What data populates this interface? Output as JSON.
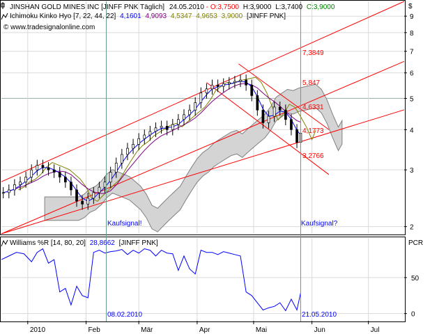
{
  "colors": {
    "background": "#ffffff",
    "frame": "#000000",
    "grid": "#d9d9d9",
    "channel": "#ff0000",
    "tenkan": "#0000ff",
    "kijun": "#800080",
    "chikou": "#808000",
    "cloud_fill": "#d4d4d4",
    "cloud_edge": "#808080",
    "signal_line": "#6a9a8a",
    "williams": "#0000ff",
    "header_up": "#000000",
    "header_red": "#ff0000",
    "header_green": "#008000",
    "annotation_blue": "#0000ff"
  },
  "header": {
    "row1_prefix": "JINSHAN GOLD MINES INC [JINFF PNK  Täglich]",
    "row1_date": "24.05.2010",
    "row1_sep": " - ",
    "row1_o": "O:3,7500",
    "row1_h": "H:3,9000",
    "row1_l": "L:3,7400",
    "row1_c": "C:3,9000",
    "row2_prefix": "Ichimoku Kinko Hyo [7, 22, 44, 22]",
    "row2_v1": "4,1601",
    "row2_v2": "4,9093",
    "row2_v3": "4,5347",
    "row2_v4": "4,9653",
    "row2_v5": "3,9000",
    "row2_suffix": "[JINFF PNK]",
    "row3": "© www.tradesignalonline.com",
    "currency": "$",
    "williams_title": "Williams %R [14, 80, 20]",
    "williams_value": "28,8662",
    "williams_suffix": "[JINFF PNK]",
    "pcr": "PCR"
  },
  "annotations": {
    "kaufsignal_1": "Kaufsignal!",
    "kaufsignal_2": "Kaufsignal?",
    "date_1": "08.02.2010",
    "date_2": "21.05.2010",
    "level_1": "7,3849",
    "level_2": "5,847",
    "level_3": "4,6331",
    "level_4": "4,1773",
    "level_5": "3,2766"
  },
  "chart_data": [
    {
      "type": "candlestick",
      "title": "JINSHAN GOLD MINES INC [JINFF PNK  Täglich]",
      "scale": "log",
      "ylim": [
        1.9,
        10
      ],
      "y_ticks": [
        2,
        3,
        4,
        5,
        6,
        7,
        8,
        9
      ],
      "x_labels": [
        "2010",
        "Feb",
        "Mär",
        "Apr",
        "Mai",
        "Jun",
        "Jul"
      ],
      "x_label_days": [
        0,
        31,
        59,
        90,
        120,
        151,
        181
      ],
      "xlim_days": [
        -14,
        200
      ],
      "ohlc_approx": [
        [
          -13,
          2.55
        ],
        [
          -10,
          2.6
        ],
        [
          -7,
          2.7
        ],
        [
          -4,
          2.75
        ],
        [
          -1,
          2.85
        ],
        [
          2,
          3.0
        ],
        [
          5,
          3.1
        ],
        [
          8,
          3.05
        ],
        [
          11,
          3.0
        ],
        [
          14,
          2.95
        ],
        [
          17,
          2.85
        ],
        [
          20,
          2.75
        ],
        [
          23,
          2.6
        ],
        [
          26,
          2.4
        ],
        [
          29,
          2.35
        ],
        [
          32,
          2.45
        ],
        [
          35,
          2.55
        ],
        [
          38,
          2.65
        ],
        [
          41,
          2.75
        ],
        [
          44,
          2.95
        ],
        [
          47,
          3.15
        ],
        [
          50,
          3.35
        ],
        [
          53,
          3.5
        ],
        [
          56,
          3.6
        ],
        [
          59,
          3.75
        ],
        [
          62,
          3.85
        ],
        [
          65,
          3.95
        ],
        [
          68,
          4.05
        ],
        [
          71,
          4.1
        ],
        [
          74,
          4.0
        ],
        [
          77,
          4.15
        ],
        [
          80,
          4.3
        ],
        [
          83,
          4.45
        ],
        [
          86,
          4.6
        ],
        [
          89,
          4.85
        ],
        [
          92,
          5.2
        ],
        [
          95,
          5.35
        ],
        [
          98,
          5.5
        ],
        [
          101,
          5.45
        ],
        [
          104,
          5.55
        ],
        [
          107,
          5.6
        ],
        [
          110,
          5.65
        ],
        [
          113,
          5.7
        ],
        [
          116,
          5.5
        ],
        [
          119,
          5.1
        ],
        [
          122,
          4.6
        ],
        [
          125,
          4.2
        ],
        [
          128,
          4.4
        ],
        [
          131,
          4.7
        ],
        [
          134,
          4.6
        ],
        [
          137,
          4.3
        ],
        [
          140,
          4.0
        ],
        [
          143,
          3.65
        ],
        [
          145,
          3.9
        ]
      ],
      "ichimoku": {
        "params": [
          7,
          22,
          44,
          22
        ],
        "tenkan_last": 4.1601,
        "kijun_last": 4.9093,
        "senkou_a_last": 4.5347,
        "senkou_b_last": 4.9653,
        "chikou_last": 3.9
      },
      "channel_levels": [
        7.3849,
        5.847,
        4.6331,
        4.1773,
        3.2766
      ],
      "last": {
        "date": "24.05.2010",
        "open": 3.75,
        "high": 3.9,
        "low": 3.74,
        "close": 3.9
      }
    },
    {
      "type": "line",
      "title": "Williams %R [14, 80, 20]",
      "ylim": [
        -10,
        105
      ],
      "y_ticks": [
        0,
        50
      ],
      "ylabel": "PCR",
      "x_days": [
        -14,
        -10,
        -6,
        -2,
        2,
        5,
        8,
        11,
        14,
        17,
        20,
        23,
        26,
        29,
        32,
        35,
        38,
        41,
        44,
        47,
        50,
        53,
        56,
        59,
        62,
        65,
        68,
        71,
        74,
        77,
        80,
        83,
        86,
        89,
        92,
        95,
        98,
        101,
        104,
        107,
        110,
        113,
        116,
        119,
        122,
        125,
        128,
        131,
        134,
        137,
        140,
        143,
        145
      ],
      "values": [
        75,
        80,
        85,
        83,
        72,
        85,
        90,
        70,
        75,
        30,
        35,
        12,
        38,
        25,
        22,
        85,
        88,
        84,
        86,
        87,
        89,
        82,
        88,
        84,
        90,
        88,
        80,
        88,
        84,
        83,
        60,
        80,
        62,
        55,
        88,
        85,
        85,
        82,
        86,
        84,
        82,
        80,
        30,
        25,
        15,
        5,
        8,
        10,
        15,
        4,
        20,
        5,
        28.87
      ],
      "last": 28.8662
    }
  ]
}
